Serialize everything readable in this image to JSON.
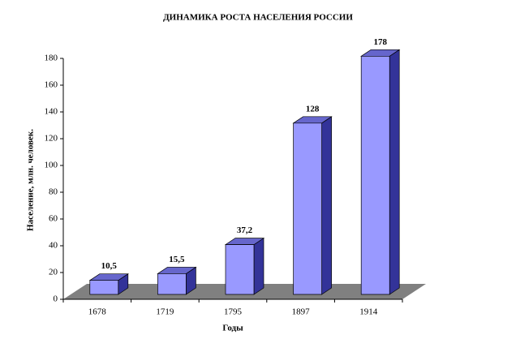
{
  "chart_data": {
    "type": "bar",
    "title": "ДИНАМИКА РОСТА НАСЕЛЕНИЯ РОССИИ",
    "xlabel": "Годы",
    "ylabel": "Население, млн. человек.",
    "categories": [
      "1678",
      "1719",
      "1795",
      "1897",
      "1914"
    ],
    "values": [
      10.5,
      15.5,
      37.2,
      128,
      178
    ],
    "value_labels": [
      "10,5",
      "15,5",
      "37,2",
      "128",
      "178"
    ],
    "color": "#9999ff",
    "ylim": [
      0,
      180
    ],
    "yticks": [
      0,
      20,
      40,
      60,
      80,
      100,
      120,
      140,
      160,
      180
    ]
  }
}
